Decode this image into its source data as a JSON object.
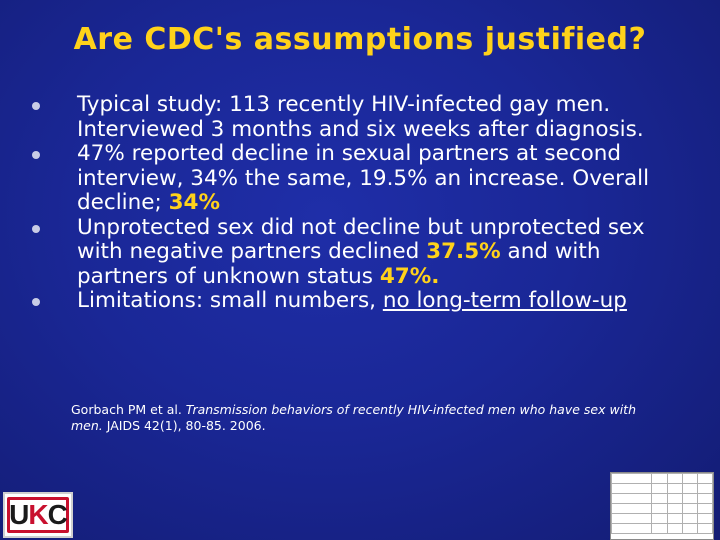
{
  "slide": {
    "title": "Are CDC's assumptions justified?",
    "bullets": [
      {
        "text": "Typical study: 113 recently HIV-infected gay men. Interviewed 3 months and six weeks after diagnosis."
      },
      {
        "pre": "47% reported decline in sexual partners at second interview, 34% the same, 19.5% an increase. Overall decline; ",
        "highlight": "34%"
      },
      {
        "pre": "Unprotected sex did not decline but unprotected sex with negative partners declined ",
        "highlight1": "37.5%",
        "mid": " and with partners of unknown status ",
        "highlight2": "47%."
      },
      {
        "pre": "Limitations: small numbers, ",
        "underlined": "no long-term follow-up"
      }
    ],
    "citation": {
      "authors": "Gorbach PM et al. ",
      "title": "Transmission behaviors of recently HIV-infected men who have sex with men.",
      "journal": " JAIDS 42(1), 80-85. 2006."
    },
    "logo": {
      "text_1": "U",
      "text_2": "K",
      "text_3": "C"
    },
    "colors": {
      "background": "#1a2796",
      "title": "#ffd21a",
      "highlight": "#ffd21a",
      "text": "#ffffff",
      "logo_red": "#c8102e"
    }
  }
}
